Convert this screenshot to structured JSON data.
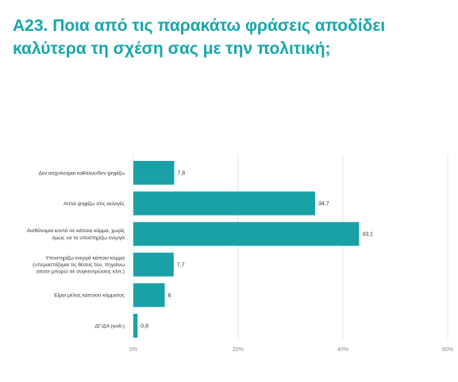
{
  "title": {
    "line1": "Α23. Ποια από τις παρακάτω φράσεις αποδίδει",
    "line2": "καλύτερα τη σχέση σας με την πολιτική;"
  },
  "colors": {
    "title": "#16a6ad",
    "bar": "#1aa1a7",
    "grid": "#d9d9d9"
  },
  "chart_data": {
    "type": "bar",
    "orientation": "horizontal",
    "categories": [
      [
        "Δεν ασχολούμαι καθόλου/δεν ψηφίζω"
      ],
      [
        "Απλά ψηφίζω στις εκλογές"
      ],
      [
        "Αισθάνομαι κοντά σε κάποιο κόμμα, χωρίς",
        "όμως να το υποστηρίζω ενεργά"
      ],
      [
        "Υποστηρίζω ενεργά κάποιο κόμμα",
        "(υπερασπίζομαι τις θέσεις του, πηγαίνω",
        "όποτε μπορώ σε συγκεντρώσεις κλπ.)"
      ],
      [
        "Είμαι μέλος κάποιου κόμματος"
      ],
      [
        "ΔΓ/ΔΑ (αυθ.)"
      ]
    ],
    "values": [
      7.8,
      34.7,
      43.1,
      7.7,
      6,
      0.8
    ],
    "value_labels": [
      "7,8",
      "34,7",
      "43,1",
      "7,7",
      "6",
      "0,8"
    ],
    "xlim": [
      0,
      60
    ],
    "ticks": [
      0,
      20,
      40,
      60
    ],
    "tick_labels": [
      "0%",
      "20%",
      "40%",
      "60%"
    ],
    "grid": true
  }
}
